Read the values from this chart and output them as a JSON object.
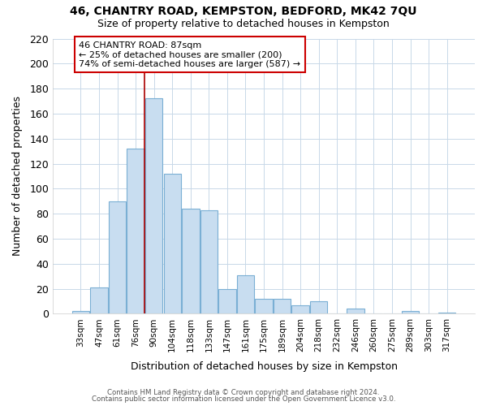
{
  "title": "46, CHANTRY ROAD, KEMPSTON, BEDFORD, MK42 7QU",
  "subtitle": "Size of property relative to detached houses in Kempston",
  "xlabel": "Distribution of detached houses by size in Kempston",
  "ylabel": "Number of detached properties",
  "bar_labels": [
    "33sqm",
    "47sqm",
    "61sqm",
    "76sqm",
    "90sqm",
    "104sqm",
    "118sqm",
    "133sqm",
    "147sqm",
    "161sqm",
    "175sqm",
    "189sqm",
    "204sqm",
    "218sqm",
    "232sqm",
    "246sqm",
    "260sqm",
    "275sqm",
    "289sqm",
    "303sqm",
    "317sqm"
  ],
  "bar_values": [
    2,
    21,
    90,
    132,
    172,
    112,
    84,
    83,
    20,
    31,
    12,
    12,
    7,
    10,
    0,
    4,
    0,
    0,
    2,
    0,
    1
  ],
  "bar_color": "#c8ddf0",
  "bar_edge_color": "#7aafd4",
  "background_color": "#ffffff",
  "grid_color": "#c8d8e8",
  "annotation_line1": "46 CHANTRY ROAD: 87sqm",
  "annotation_line2": "← 25% of detached houses are smaller (200)",
  "annotation_line3": "74% of semi-detached houses are larger (587) →",
  "annotation_box_color": "#ffffff",
  "annotation_box_edge_color": "#cc0000",
  "vline_color": "#aa0000",
  "vline_x_index": 3.5,
  "ylim": [
    0,
    220
  ],
  "yticks": [
    0,
    20,
    40,
    60,
    80,
    100,
    120,
    140,
    160,
    180,
    200,
    220
  ],
  "footnote1": "Contains HM Land Registry data © Crown copyright and database right 2024.",
  "footnote2": "Contains public sector information licensed under the Open Government Licence v3.0."
}
